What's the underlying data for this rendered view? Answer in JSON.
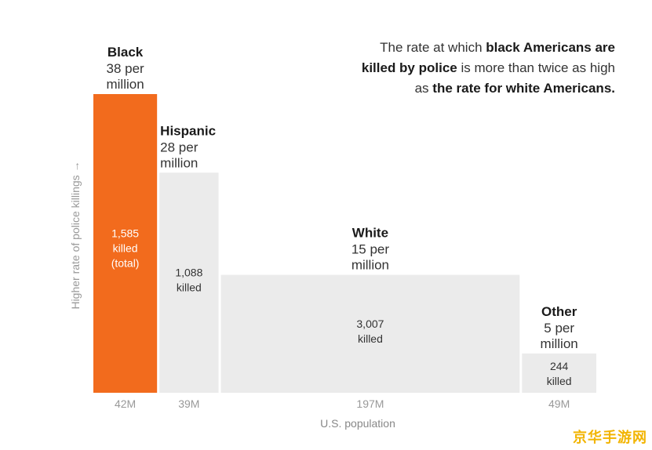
{
  "chart_data": {
    "type": "bar",
    "variant": "variable-width (marimekko) bars: width = population, height = killing rate",
    "headline": {
      "t1": "The rate at which ",
      "b1": "black Americans are",
      "b2": "killed by police",
      "t2": " is more than twice as high",
      "t3": "as ",
      "b3": "the rate for white Americans."
    },
    "ylabel": "Higher rate of police killings →",
    "xlabel": "U.S. population",
    "ylim": [
      0,
      38
    ],
    "rate_unit": "per million",
    "series": [
      {
        "name": "Black",
        "rate_line1": "38 per",
        "rate_line2": "million",
        "rate": 38,
        "killed_num": "1,585",
        "killed_word": "killed",
        "killed_extra": "(total)",
        "killed": 1585,
        "population_label": "42M",
        "population": 42,
        "color": "#f26b1d",
        "label_color": "#ffffff"
      },
      {
        "name": "Hispanic",
        "rate_line1": "28 per",
        "rate_line2": "million",
        "rate": 28,
        "killed_num": "1,088",
        "killed_word": "killed",
        "killed_extra": "",
        "killed": 1088,
        "population_label": "39M",
        "population": 39,
        "color": "#ebebeb",
        "label_color": "#333333"
      },
      {
        "name": "White",
        "rate_line1": "15 per",
        "rate_line2": "million",
        "rate": 15,
        "killed_num": "3,007",
        "killed_word": "killed",
        "killed_extra": "",
        "killed": 3007,
        "population_label": "197M",
        "population": 197,
        "color": "#ebebeb",
        "label_color": "#333333"
      },
      {
        "name": "Other",
        "rate_line1": "5 per",
        "rate_line2": "million",
        "rate": 5,
        "killed_num": "244",
        "killed_word": "killed",
        "killed_extra": "",
        "killed": 244,
        "population_label": "49M",
        "population": 49,
        "color": "#ebebeb",
        "label_color": "#333333"
      }
    ]
  },
  "watermark": "京华手游网",
  "colors": {
    "accent": "#f26b1d",
    "bar": "#ebebeb",
    "muted": "#999999",
    "watermark": "#f2b400"
  }
}
